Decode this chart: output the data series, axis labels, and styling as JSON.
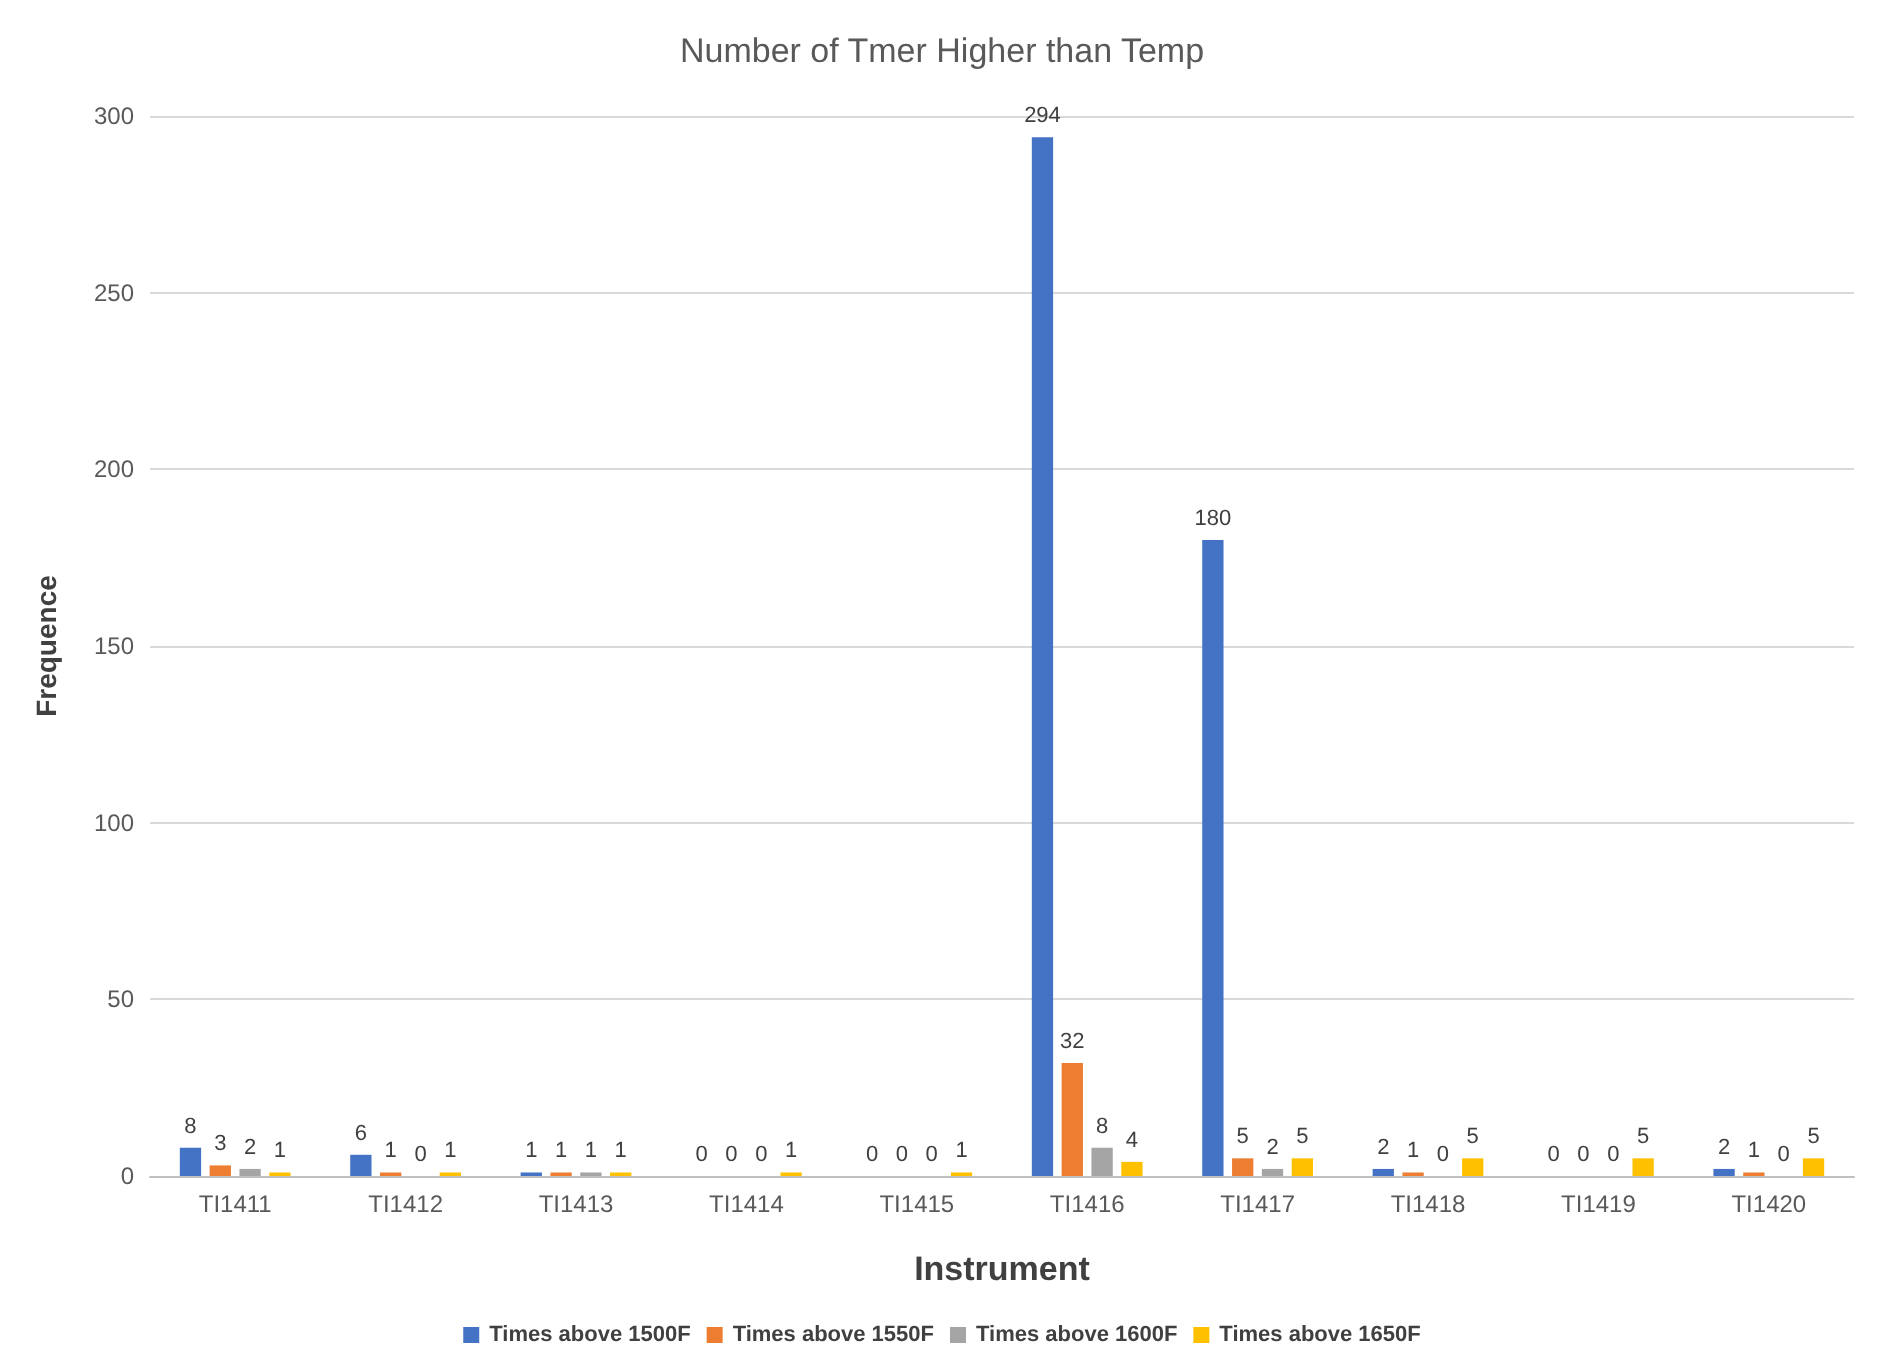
{
  "chart_data": {
    "type": "bar",
    "title": "Number of Tmer Higher than Temp",
    "xlabel": "Instrument",
    "ylabel": "Frequence",
    "categories": [
      "TI1411",
      "TI1412",
      "TI1413",
      "TI1414",
      "TI1415",
      "TI1416",
      "TI1417",
      "TI1418",
      "TI1419",
      "TI1420"
    ],
    "series": [
      {
        "name": "Times above 1500F",
        "color": "#4472c4",
        "values": [
          8,
          6,
          1,
          0,
          0,
          294,
          180,
          2,
          0,
          2
        ]
      },
      {
        "name": "Times above 1550F",
        "color": "#ed7d31",
        "values": [
          3,
          1,
          1,
          0,
          0,
          32,
          5,
          1,
          0,
          1
        ]
      },
      {
        "name": "Times above 1600F",
        "color": "#a5a5a5",
        "values": [
          2,
          0,
          1,
          0,
          0,
          8,
          2,
          0,
          0,
          0
        ]
      },
      {
        "name": "Times above 1650F",
        "color": "#ffc000",
        "values": [
          1,
          1,
          1,
          1,
          1,
          4,
          5,
          5,
          5,
          5
        ]
      }
    ],
    "ylim": [
      0,
      300
    ],
    "yticks": [
      0,
      50,
      100,
      150,
      200,
      250,
      300
    ],
    "grid": "y",
    "legend": "bottom",
    "data_labels": true
  }
}
